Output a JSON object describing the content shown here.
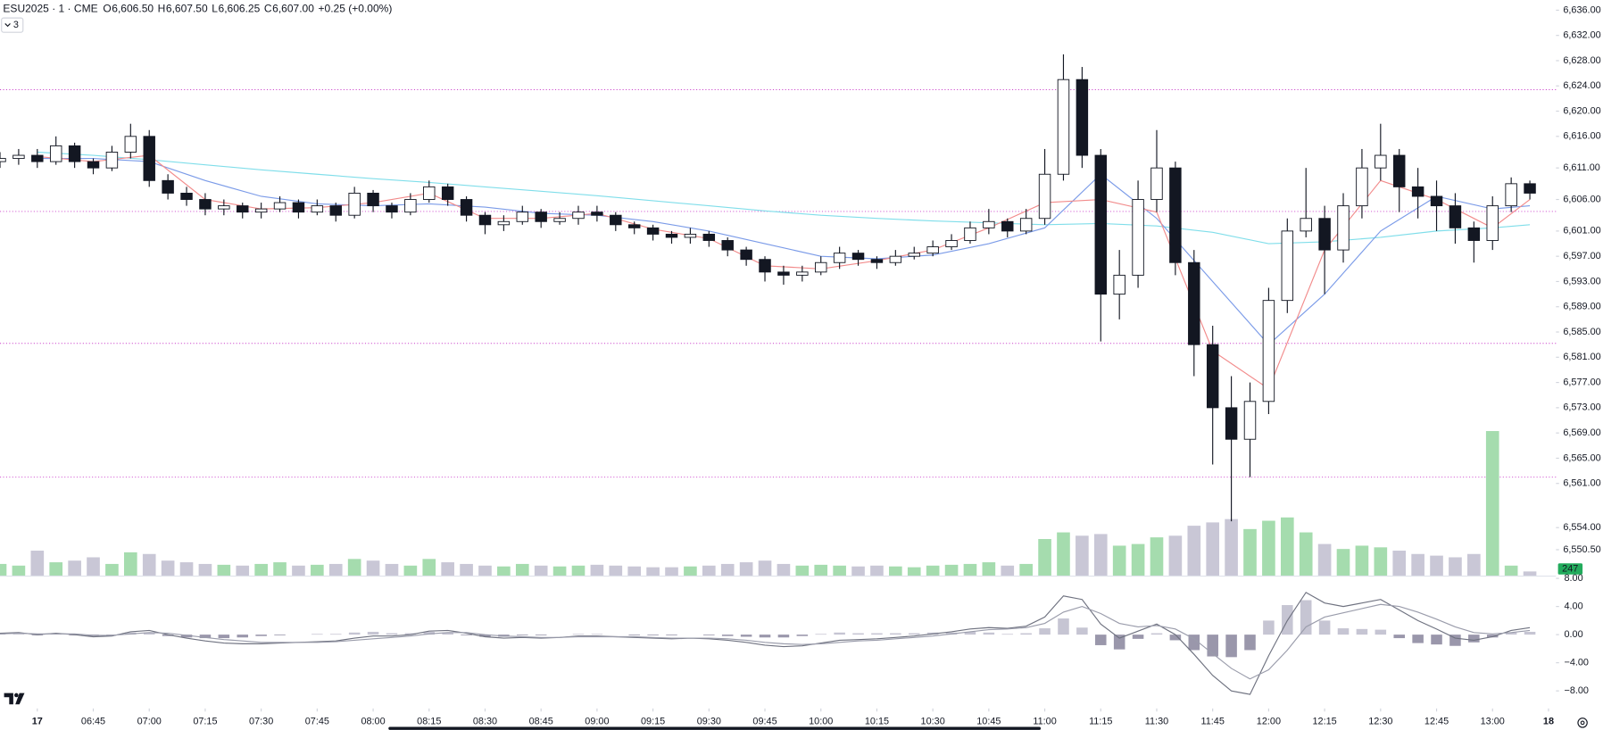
{
  "chart_data": {
    "type": "candlestick",
    "symbol": "ESU2025 · 1 · CME",
    "legend": [
      {
        "label": "O",
        "value": "6,606.50"
      },
      {
        "label": "H",
        "value": "6,607.50"
      },
      {
        "label": "L",
        "value": "6,606.25"
      },
      {
        "label": "C",
        "value": "6,607.00"
      }
    ],
    "change": "+0.25 (+0.00%)",
    "indicator_count": "3",
    "up_color": "#ffffff",
    "down_color": "#131722",
    "wick_color": "#131722",
    "xlim": [
      "06:20",
      "13:17"
    ],
    "xticks": [
      {
        "value": "06:30",
        "label": "17"
      },
      "06:45",
      "07:00",
      "07:15",
      "07:30",
      "07:45",
      "08:00",
      "08:15",
      "08:30",
      "08:45",
      "09:00",
      "09:15",
      "09:30",
      "09:45",
      "10:00",
      "10:15",
      "10:30",
      "10:45",
      "11:00",
      "11:15",
      "11:30",
      "11:45",
      "12:00",
      "12:15",
      "12:30",
      "12:45",
      "13:00",
      {
        "value": "13:15",
        "label": "18"
      }
    ],
    "ylim": [
      6546.4,
      6637.6
    ],
    "yticks": [
      {
        "value": 6636,
        "label": "6,636.00"
      },
      {
        "value": 6632,
        "label": "6,632.00"
      },
      {
        "value": 6628,
        "label": "6,628.00"
      },
      {
        "value": 6624,
        "label": "6,624.00"
      },
      {
        "value": 6620,
        "label": "6,620.00"
      },
      {
        "value": 6616,
        "label": "6,616.00"
      },
      {
        "value": 6611,
        "label": "6,611.00"
      },
      {
        "value": 6606,
        "label": "6,606.00"
      },
      {
        "value": 6601,
        "label": "6,601.00"
      },
      {
        "value": 6597,
        "label": "6,597.00"
      },
      {
        "value": 6593,
        "label": "6,593.00"
      },
      {
        "value": 6589,
        "label": "6,589.00"
      },
      {
        "value": 6585,
        "label": "6,585.00"
      },
      {
        "value": 6581,
        "label": "6,581.00"
      },
      {
        "value": 6577,
        "label": "6,577.00"
      },
      {
        "value": 6573,
        "label": "6,573.00"
      },
      {
        "value": 6569,
        "label": "6,569.00"
      },
      {
        "value": 6565,
        "label": "6,565.00"
      },
      {
        "value": 6561,
        "label": "6,561.00"
      },
      {
        "value": 6554,
        "label": "6,554.00"
      },
      {
        "value": 6550.5,
        "label": "6,550.50"
      }
    ],
    "x": [
      "06:20",
      "06:25",
      "06:30",
      "06:35",
      "06:40",
      "06:45",
      "06:50",
      "06:55",
      "07:00",
      "07:05",
      "07:10",
      "07:15",
      "07:20",
      "07:25",
      "07:30",
      "07:35",
      "07:40",
      "07:45",
      "07:50",
      "07:55",
      "08:00",
      "08:05",
      "08:10",
      "08:15",
      "08:20",
      "08:25",
      "08:30",
      "08:35",
      "08:40",
      "08:45",
      "08:50",
      "08:55",
      "09:00",
      "09:05",
      "09:10",
      "09:15",
      "09:20",
      "09:25",
      "09:30",
      "09:35",
      "09:40",
      "09:45",
      "09:50",
      "09:55",
      "10:00",
      "10:05",
      "10:10",
      "10:15",
      "10:20",
      "10:25",
      "10:30",
      "10:35",
      "10:40",
      "10:45",
      "10:50",
      "10:55",
      "11:00",
      "11:05",
      "11:10",
      "11:15",
      "11:20",
      "11:25",
      "11:30",
      "11:35",
      "11:40",
      "11:45",
      "11:50",
      "11:55",
      "12:00",
      "12:05",
      "12:10",
      "12:15",
      "12:20",
      "12:25",
      "12:30",
      "12:35",
      "12:40",
      "12:45",
      "12:50",
      "12:55",
      "13:00",
      "13:05",
      "13:10"
    ],
    "open": [
      6612.0,
      6612.5,
      6613.0,
      6612.0,
      6614.5,
      6612.0,
      6611.0,
      6613.5,
      6616.0,
      6609.0,
      6607.0,
      6606.0,
      6604.5,
      6605.0,
      6604.0,
      6604.5,
      6605.5,
      6604.0,
      6605.0,
      6603.5,
      6607.0,
      6605.0,
      6604.0,
      6606.0,
      6608.0,
      6606.0,
      6603.5,
      6602.0,
      6602.5,
      6604.0,
      6602.5,
      6603.0,
      6604.0,
      6603.5,
      6602.0,
      6601.5,
      6600.5,
      6600.0,
      6600.5,
      6599.5,
      6598.0,
      6596.5,
      6594.5,
      6594.0,
      6594.5,
      6596.0,
      6597.5,
      6596.5,
      6596.0,
      6597.0,
      6597.5,
      6598.5,
      6599.5,
      6601.5,
      6602.5,
      6601.0,
      6603.0,
      6610.0,
      6625.0,
      6613.0,
      6591.0,
      6594.0,
      6606.0,
      6611.0,
      6596.0,
      6583.0,
      6573.0,
      6568.0,
      6574.0,
      6590.0,
      6601.0,
      6603.0,
      6598.0,
      6605.0,
      6611.0,
      6613.0,
      6608.0,
      6606.5,
      6605.0,
      6601.5,
      6599.5,
      6605.0,
      6608.5
    ],
    "high": [
      6613.5,
      6614.0,
      6614.0,
      6616.0,
      6615.0,
      6612.5,
      6614.5,
      6618.0,
      6617.0,
      6610.0,
      6608.0,
      6607.0,
      6606.0,
      6605.5,
      6605.5,
      6606.5,
      6606.0,
      6606.0,
      6605.5,
      6608.0,
      6607.5,
      6605.5,
      6607.0,
      6609.0,
      6608.5,
      6606.5,
      6604.0,
      6603.5,
      6605.0,
      6604.5,
      6604.0,
      6605.0,
      6605.0,
      6604.0,
      6602.5,
      6602.0,
      6601.0,
      6601.5,
      6601.0,
      6600.0,
      6598.5,
      6597.0,
      6595.5,
      6595.5,
      6597.0,
      6598.5,
      6598.0,
      6597.0,
      6598.0,
      6598.5,
      6599.5,
      6600.5,
      6602.5,
      6604.5,
      6603.0,
      6604.5,
      6614.0,
      6629.0,
      6627.0,
      6614.0,
      6598.0,
      6609.0,
      6617.0,
      6612.0,
      6598.0,
      6586.0,
      6578.0,
      6577.0,
      6592.0,
      6603.0,
      6611.0,
      6605.0,
      6607.0,
      6614.0,
      6618.0,
      6614.0,
      6611.0,
      6609.0,
      6607.0,
      6602.5,
      6606.5,
      6609.5,
      6609.0
    ],
    "low": [
      6611.0,
      6611.5,
      6611.0,
      6611.5,
      6611.0,
      6610.0,
      6610.5,
      6612.5,
      6608.0,
      6606.0,
      6605.0,
      6603.5,
      6603.5,
      6603.0,
      6603.0,
      6604.0,
      6603.0,
      6603.5,
      6602.5,
      6603.0,
      6604.0,
      6603.0,
      6603.5,
      6605.5,
      6605.0,
      6602.5,
      6600.5,
      6601.0,
      6602.0,
      6601.5,
      6602.0,
      6602.0,
      6602.5,
      6601.0,
      6600.5,
      6599.5,
      6599.0,
      6599.0,
      6598.5,
      6597.0,
      6595.5,
      6593.0,
      6592.5,
      6593.0,
      6594.0,
      6595.0,
      6595.5,
      6595.0,
      6595.5,
      6596.5,
      6597.0,
      6598.0,
      6599.0,
      6600.5,
      6600.0,
      6600.5,
      6602.0,
      6609.0,
      6611.0,
      6583.5,
      6587.0,
      6592.0,
      6604.0,
      6594.0,
      6578.0,
      6564.0,
      6555.0,
      6562.0,
      6572.0,
      6588.0,
      6600.0,
      6591.0,
      6596.0,
      6603.0,
      6609.0,
      6604.0,
      6603.0,
      6601.0,
      6599.0,
      6596.0,
      6598.0,
      6604.0,
      6606.0
    ],
    "close": [
      6612.5,
      6613.0,
      6612.0,
      6614.5,
      6612.0,
      6611.0,
      6613.5,
      6616.0,
      6609.0,
      6607.0,
      6606.0,
      6604.5,
      6605.0,
      6604.0,
      6604.5,
      6605.5,
      6604.0,
      6605.0,
      6603.5,
      6607.0,
      6605.0,
      6604.0,
      6606.0,
      6608.0,
      6606.0,
      6603.5,
      6602.0,
      6602.5,
      6604.0,
      6602.5,
      6603.0,
      6604.0,
      6603.5,
      6602.0,
      6601.5,
      6600.5,
      6600.0,
      6600.5,
      6599.5,
      6598.0,
      6596.5,
      6594.5,
      6594.0,
      6594.5,
      6596.0,
      6597.5,
      6596.5,
      6596.0,
      6597.0,
      6597.5,
      6598.5,
      6599.5,
      6601.5,
      6602.5,
      6601.0,
      6603.0,
      6610.0,
      6625.0,
      6613.0,
      6591.0,
      6594.0,
      6606.0,
      6611.0,
      6596.0,
      6583.0,
      6573.0,
      6568.0,
      6574.0,
      6590.0,
      6601.0,
      6603.0,
      6598.0,
      6605.0,
      6611.0,
      6613.0,
      6608.0,
      6606.5,
      6605.0,
      6601.5,
      6599.5,
      6605.0,
      6608.5,
      6607.0
    ],
    "levels": {
      "color": "#cc44cc",
      "values": [
        6623.4,
        6604.1,
        6583.2,
        6562.0
      ]
    },
    "moving_averages": {
      "x": [
        "06:30",
        "06:45",
        "07:00",
        "07:15",
        "07:30",
        "07:45",
        "08:00",
        "08:15",
        "08:30",
        "08:45",
        "09:00",
        "09:15",
        "09:30",
        "09:45",
        "10:00",
        "10:15",
        "10:30",
        "10:45",
        "11:00",
        "11:15",
        "11:30",
        "11:45",
        "12:00",
        "12:15",
        "12:30",
        "12:45",
        "13:00",
        "13:10"
      ],
      "series": [
        {
          "color": "#80deea",
          "values": [
            6613.5,
            6613.0,
            6612.3,
            6611.5,
            6610.7,
            6610.0,
            6609.3,
            6608.7,
            6608.0,
            6607.3,
            6606.6,
            6605.8,
            6605.0,
            6604.2,
            6603.5,
            6603.0,
            6602.6,
            6602.3,
            6602.0,
            6602.2,
            6601.8,
            6600.8,
            6599.0,
            6599.3,
            6600.0,
            6601.0,
            6601.5,
            6602.0
          ]
        },
        {
          "color": "#7b9be8",
          "values": [
            6612.5,
            6612.5,
            6612.0,
            6609.0,
            6606.5,
            6605.3,
            6605.0,
            6605.3,
            6604.8,
            6603.8,
            6603.5,
            6602.5,
            6601.0,
            6599.0,
            6597.0,
            6596.6,
            6597.2,
            6599.0,
            6601.5,
            6610.0,
            6603.0,
            6593.0,
            6583.0,
            6591.0,
            6601.0,
            6606.5,
            6604.5,
            6605.0
          ]
        },
        {
          "color": "#f28b8b",
          "values": [
            6612.8,
            6612.0,
            6613.0,
            6606.0,
            6604.5,
            6604.7,
            6605.5,
            6607.0,
            6603.0,
            6603.0,
            6603.8,
            6601.3,
            6599.8,
            6595.5,
            6595.0,
            6596.3,
            6598.0,
            6601.5,
            6605.5,
            6606.0,
            6604.0,
            6582.0,
            6576.0,
            6598.0,
            6609.0,
            6606.0,
            6601.5,
            6606.0
          ]
        }
      ]
    },
    "volume": {
      "ylim": [
        0,
        12000
      ],
      "up_color": "#a5dcae",
      "down_color": "#c9c7d6",
      "label_color": "#22ab5c",
      "values": [
        700,
        600,
        1500,
        800,
        900,
        1100,
        700,
        1400,
        1300,
        900,
        800,
        700,
        650,
        600,
        700,
        800,
        600,
        650,
        700,
        1000,
        900,
        700,
        600,
        1000,
        800,
        700,
        600,
        550,
        700,
        600,
        550,
        600,
        650,
        600,
        550,
        500,
        500,
        550,
        600,
        700,
        800,
        900,
        700,
        600,
        650,
        600,
        550,
        600,
        550,
        500,
        600,
        650,
        700,
        800,
        600,
        700,
        2200,
        2600,
        2400,
        2500,
        1800,
        1900,
        2300,
        2400,
        3000,
        3200,
        3400,
        2800,
        3300,
        3500,
        2600,
        1900,
        1600,
        1800,
        1700,
        1500,
        1300,
        1200,
        1100,
        1300,
        8700,
        600,
        247
      ]
    },
    "macd": {
      "ylim": [
        -10.5,
        8.4
      ],
      "yticks": [
        {
          "value": 8,
          "label": "8.00"
        },
        {
          "value": 4,
          "label": "4.00"
        },
        {
          "value": 0,
          "label": "0.00"
        },
        {
          "value": -4,
          "label": "−4.00"
        },
        {
          "value": -8,
          "label": "−8.00"
        }
      ],
      "macd_line": {
        "color": "#6f7280",
        "values": [
          0.2,
          0.3,
          0.0,
          0.2,
          0.0,
          -0.3,
          -0.2,
          0.4,
          0.6,
          0.0,
          -0.5,
          -0.9,
          -1.2,
          -1.3,
          -1.3,
          -1.2,
          -1.1,
          -1.0,
          -0.9,
          -0.5,
          -0.2,
          -0.2,
          0.0,
          0.5,
          0.6,
          0.2,
          -0.3,
          -0.5,
          -0.4,
          -0.5,
          -0.4,
          -0.2,
          -0.2,
          -0.3,
          -0.4,
          -0.5,
          -0.6,
          -0.5,
          -0.6,
          -0.8,
          -1.1,
          -1.5,
          -1.7,
          -1.6,
          -1.2,
          -0.8,
          -0.7,
          -0.6,
          -0.4,
          -0.2,
          0.1,
          0.4,
          0.8,
          1.0,
          0.9,
          1.2,
          2.5,
          5.5,
          5.0,
          1.5,
          -0.5,
          0.5,
          1.5,
          0.0,
          -2.8,
          -5.8,
          -8.0,
          -8.5,
          -3.0,
          2.0,
          6.0,
          4.5,
          4.0,
          4.5,
          5.0,
          3.5,
          2.0,
          0.8,
          -0.5,
          -0.8,
          -0.3,
          0.6,
          1.0
        ]
      },
      "signal_line": {
        "color": "#9a9cab",
        "values": [
          0.1,
          0.2,
          0.1,
          0.1,
          0.1,
          -0.1,
          -0.1,
          0.1,
          0.3,
          0.2,
          -0.1,
          -0.4,
          -0.7,
          -0.9,
          -1.1,
          -1.1,
          -1.1,
          -1.1,
          -1.0,
          -0.8,
          -0.6,
          -0.4,
          -0.2,
          0.1,
          0.3,
          0.3,
          0.0,
          -0.2,
          -0.3,
          -0.4,
          -0.4,
          -0.3,
          -0.3,
          -0.3,
          -0.3,
          -0.4,
          -0.5,
          -0.5,
          -0.5,
          -0.6,
          -0.8,
          -1.1,
          -1.3,
          -1.4,
          -1.3,
          -1.1,
          -0.9,
          -0.8,
          -0.6,
          -0.4,
          -0.2,
          0.1,
          0.4,
          0.7,
          0.8,
          1.0,
          1.6,
          3.2,
          4.0,
          3.0,
          1.6,
          1.1,
          1.3,
          0.8,
          -0.6,
          -2.7,
          -4.8,
          -6.3,
          -5.0,
          -2.2,
          1.1,
          2.5,
          3.1,
          3.7,
          4.3,
          4.0,
          3.2,
          2.2,
          1.1,
          0.3,
          0.1,
          0.3,
          0.6
        ]
      },
      "histogram": {
        "up_color": "#c6c5d3",
        "down_color": "#9a97ab",
        "values": [
          0.1,
          0.1,
          -0.1,
          0.1,
          -0.1,
          -0.2,
          -0.1,
          0.3,
          0.3,
          -0.2,
          -0.4,
          -0.5,
          -0.5,
          -0.4,
          -0.2,
          -0.1,
          0.0,
          0.1,
          0.1,
          0.3,
          0.4,
          0.2,
          0.2,
          0.4,
          0.3,
          -0.1,
          -0.3,
          -0.3,
          -0.1,
          -0.1,
          0.0,
          0.1,
          0.1,
          0.0,
          -0.1,
          -0.1,
          -0.1,
          0.0,
          -0.1,
          -0.2,
          -0.3,
          -0.4,
          -0.4,
          -0.2,
          0.1,
          0.3,
          0.2,
          0.2,
          0.2,
          0.2,
          0.3,
          0.3,
          0.4,
          0.3,
          0.1,
          0.2,
          0.9,
          2.3,
          1.0,
          -1.5,
          -2.1,
          -0.6,
          0.2,
          -0.8,
          -2.2,
          -3.1,
          -3.2,
          -2.2,
          2.0,
          4.2,
          4.9,
          2.0,
          0.9,
          0.8,
          0.7,
          -0.5,
          -1.2,
          -1.4,
          -1.6,
          -1.1,
          -0.4,
          0.3,
          0.4
        ]
      }
    }
  }
}
